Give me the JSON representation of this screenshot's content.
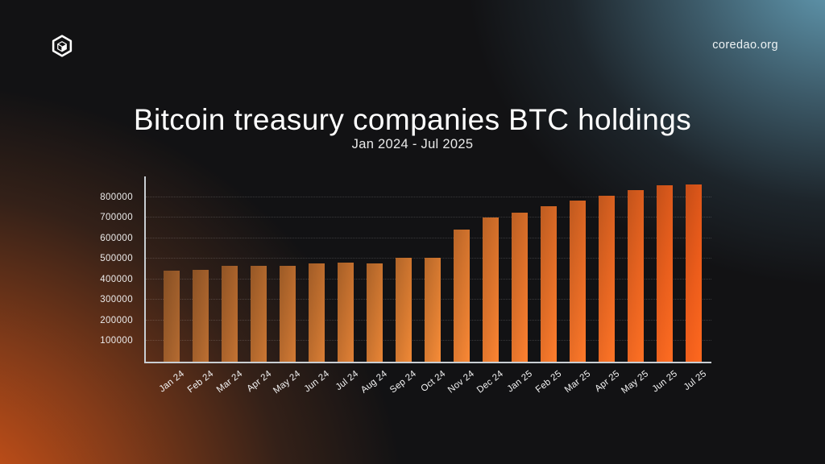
{
  "header": {
    "site_url": "coredao.org",
    "title": "Bitcoin treasury companies BTC holdings",
    "subtitle": "Jan 2024 - Jul 2025"
  },
  "icons": {
    "logo": "coredao-hexagon-cube-logo"
  },
  "colors": {
    "background": "#121214",
    "glow_teal": "#6cacc6",
    "glow_orange": "#e85a17",
    "axis": "#c9ced3",
    "gridline": "rgba(255,255,255,0.17)",
    "text": "#f2f2f2",
    "bar_stops": [
      "#9f5e2b",
      "#d97b31",
      "#eb5c1b"
    ]
  },
  "chart_data": {
    "type": "bar",
    "title": "Bitcoin treasury companies BTC holdings",
    "subtitle": "Jan 2024 - Jul 2025",
    "categories": [
      "Jan 24",
      "Feb 24",
      "Mar 24",
      "Apr 24",
      "May 24",
      "Jun 24",
      "Jul 24",
      "Aug 24",
      "Sep 24",
      "Oct 24",
      "Nov 24",
      "Dec 24",
      "Jan 25",
      "Feb 25",
      "Mar 25",
      "Apr 25",
      "May 25",
      "Jun 25",
      "Jul 25"
    ],
    "values": [
      442000,
      446000,
      464000,
      465000,
      465000,
      476000,
      480000,
      478000,
      504000,
      504000,
      641000,
      700000,
      723000,
      754000,
      782000,
      807000,
      833000,
      857000,
      861000
    ],
    "xlabel": "",
    "ylabel": "",
    "ylim": [
      0,
      900000
    ],
    "y_ticks": [
      100000,
      200000,
      300000,
      400000,
      500000,
      600000,
      700000,
      800000
    ],
    "grid": "horizontal-dotted",
    "legend": "none"
  }
}
